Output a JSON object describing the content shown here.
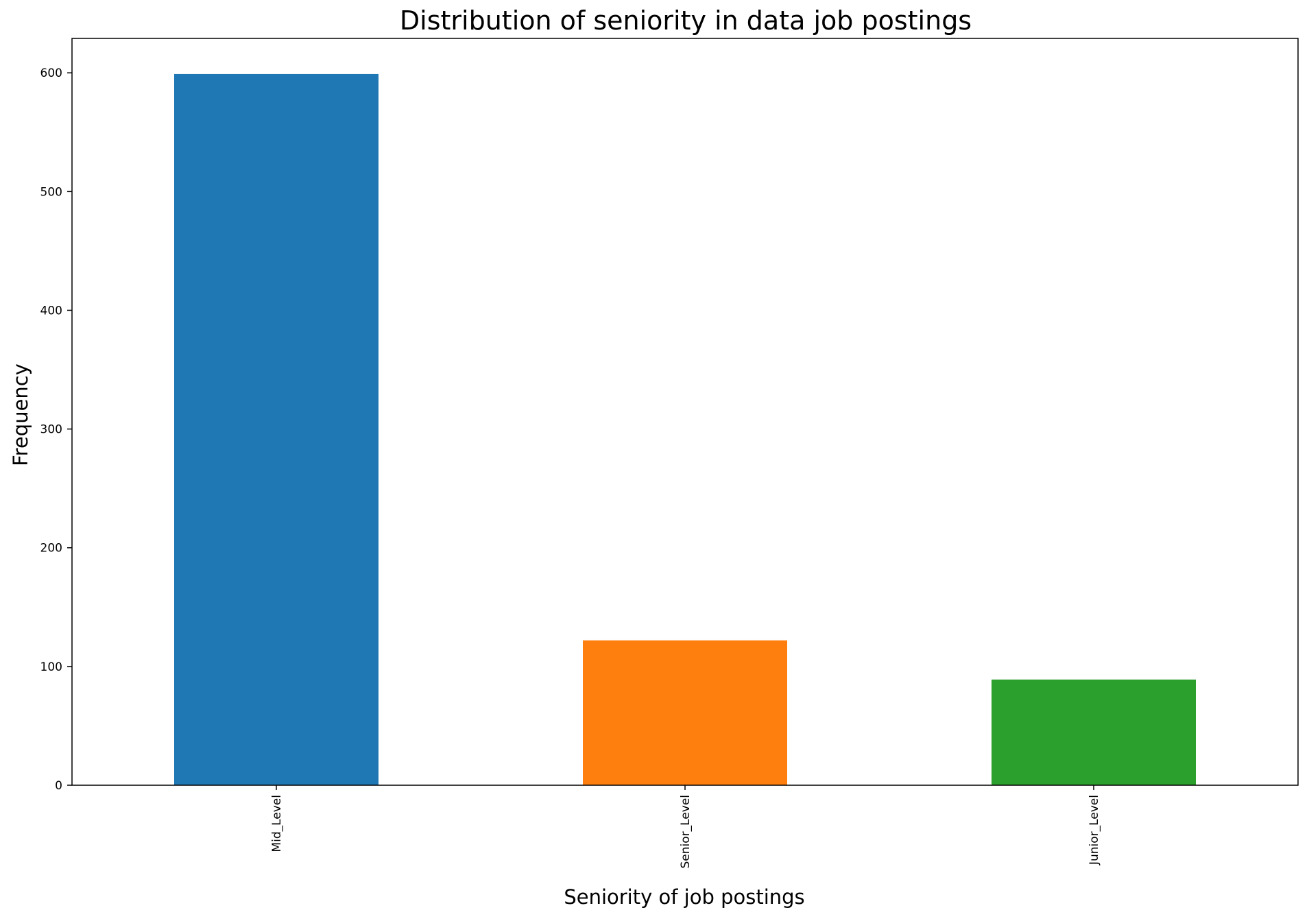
{
  "chart_data": {
    "type": "bar",
    "title": "Distribution of seniority in data job postings",
    "xlabel": "Seniority of job postings",
    "ylabel": "Frequency",
    "categories": [
      "Mid_Level",
      "Senior_Level",
      "Junior_Level"
    ],
    "values": [
      599,
      122,
      89
    ],
    "colors": [
      "#1f77b4",
      "#ff7f0e",
      "#2ca02c"
    ],
    "ylim": [
      0,
      629
    ],
    "yticks": [
      0,
      100,
      200,
      300,
      400,
      500,
      600
    ],
    "grid": false,
    "legend": "none",
    "xtick_rotation": "vertical"
  }
}
